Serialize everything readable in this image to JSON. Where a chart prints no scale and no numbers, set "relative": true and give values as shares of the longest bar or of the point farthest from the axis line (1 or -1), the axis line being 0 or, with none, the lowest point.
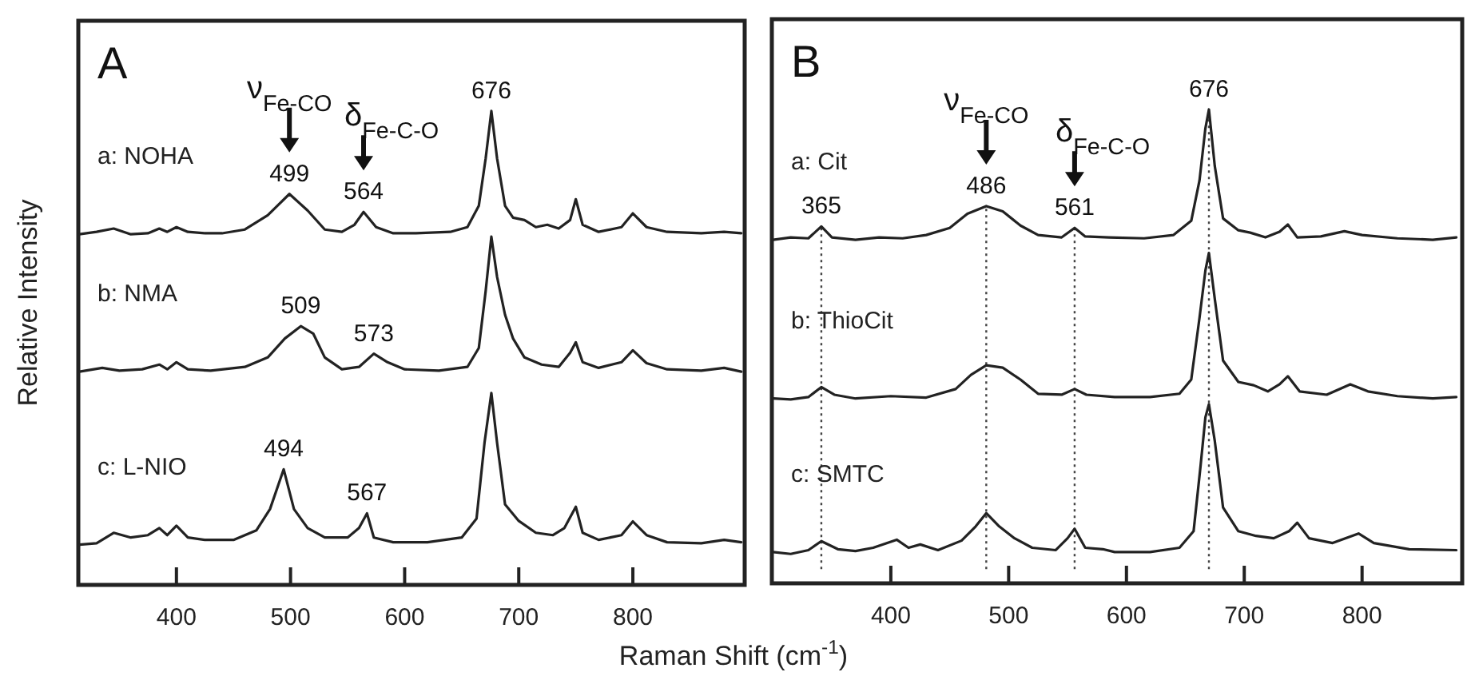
{
  "chart_data": [
    {
      "type": "line",
      "title": "A",
      "xlabel": "Raman Shift (cm$^{-1}$)",
      "ylabel": "Relative Intensity",
      "relative": true,
      "xlim": [
        314,
        898
      ],
      "xticks": [
        400,
        500,
        600,
        700,
        800
      ],
      "legend": false,
      "tick_labels": "x",
      "line_style": "solid",
      "series": [
        {
          "name": "a: NOHA",
          "color": "#222222",
          "x": [
            315,
            330,
            345,
            360,
            375,
            385,
            392,
            400,
            410,
            425,
            440,
            460,
            480,
            499,
            515,
            530,
            545,
            556,
            564,
            575,
            590,
            610,
            640,
            655,
            665,
            671,
            676,
            681,
            688,
            695,
            705,
            715,
            725,
            735,
            745,
            750,
            756,
            770,
            790,
            800,
            812,
            830,
            860,
            880,
            895
          ],
          "values": [
            0.74,
            0.745,
            0.752,
            0.74,
            0.742,
            0.752,
            0.745,
            0.755,
            0.745,
            0.742,
            0.742,
            0.75,
            0.78,
            0.825,
            0.79,
            0.75,
            0.745,
            0.76,
            0.787,
            0.755,
            0.742,
            0.742,
            0.745,
            0.755,
            0.8,
            0.9,
            1.0,
            0.9,
            0.8,
            0.775,
            0.77,
            0.755,
            0.76,
            0.752,
            0.77,
            0.814,
            0.76,
            0.745,
            0.755,
            0.784,
            0.755,
            0.745,
            0.742,
            0.745,
            0.742
          ]
        },
        {
          "name": "b: NMA",
          "color": "#222222",
          "x": [
            315,
            335,
            350,
            370,
            385,
            392,
            400,
            410,
            430,
            460,
            480,
            495,
            509,
            520,
            530,
            545,
            560,
            573,
            585,
            600,
            630,
            655,
            665,
            671,
            676,
            681,
            688,
            695,
            705,
            720,
            735,
            745,
            750,
            756,
            770,
            790,
            800,
            812,
            830,
            860,
            880,
            895
          ],
          "values": [
            0.45,
            0.458,
            0.452,
            0.455,
            0.465,
            0.455,
            0.47,
            0.455,
            0.452,
            0.46,
            0.48,
            0.52,
            0.546,
            0.53,
            0.48,
            0.455,
            0.46,
            0.488,
            0.47,
            0.455,
            0.452,
            0.46,
            0.5,
            0.62,
            0.735,
            0.65,
            0.57,
            0.52,
            0.48,
            0.465,
            0.46,
            0.49,
            0.512,
            0.47,
            0.458,
            0.47,
            0.495,
            0.468,
            0.455,
            0.452,
            0.458,
            0.45
          ]
        },
        {
          "name": "c: L-NIO",
          "color": "#222222",
          "x": [
            315,
            330,
            345,
            360,
            375,
            385,
            392,
            400,
            410,
            425,
            450,
            470,
            482,
            494,
            503,
            515,
            530,
            550,
            560,
            567,
            573,
            590,
            620,
            650,
            663,
            670,
            676,
            681,
            688,
            700,
            715,
            730,
            740,
            750,
            756,
            770,
            790,
            800,
            812,
            830,
            860,
            880,
            895
          ],
          "values": [
            0.085,
            0.088,
            0.11,
            0.1,
            0.105,
            0.12,
            0.105,
            0.125,
            0.1,
            0.095,
            0.095,
            0.115,
            0.16,
            0.244,
            0.16,
            0.12,
            0.1,
            0.1,
            0.12,
            0.151,
            0.1,
            0.09,
            0.09,
            0.1,
            0.14,
            0.3,
            0.405,
            0.3,
            0.17,
            0.135,
            0.11,
            0.105,
            0.12,
            0.165,
            0.11,
            0.095,
            0.105,
            0.134,
            0.105,
            0.09,
            0.088,
            0.095,
            0.09
          ]
        }
      ],
      "annotations": [
        {
          "text": "ν$_{Fe-CO}$",
          "x": 499,
          "y": 0.825
        },
        {
          "text": "δ$_{Fe-C-O}$",
          "x": 564,
          "y": 0.787
        },
        {
          "text": "499",
          "x": 499,
          "y": 0.825
        },
        {
          "text": "564",
          "x": 564,
          "y": 0.787
        },
        {
          "text": "676",
          "x": 676,
          "y": 1.0
        },
        {
          "text": "509",
          "x": 509,
          "y": 0.546
        },
        {
          "text": "573",
          "x": 573,
          "y": 0.488
        },
        {
          "text": "494",
          "x": 494,
          "y": 0.244
        },
        {
          "text": "567",
          "x": 567,
          "y": 0.151
        }
      ]
    },
    {
      "type": "line",
      "title": "B",
      "relative": true,
      "xlim": [
        299,
        885
      ],
      "xticks": [
        400,
        500,
        600,
        700,
        800
      ],
      "legend": false,
      "tick_labels": "x",
      "line_style": "solid",
      "series": [
        {
          "name": "a: Cit",
          "color": "#222222",
          "x": [
            300,
            315,
            330,
            341,
            350,
            370,
            390,
            410,
            430,
            450,
            465,
            481,
            495,
            510,
            525,
            545,
            556,
            565,
            585,
            615,
            640,
            655,
            662,
            667,
            670,
            675,
            682,
            695,
            705,
            718,
            730,
            737,
            745,
            765,
            785,
            800,
            830,
            860,
            880
          ],
          "values": [
            0.725,
            0.73,
            0.728,
            0.753,
            0.73,
            0.725,
            0.73,
            0.728,
            0.735,
            0.75,
            0.78,
            0.796,
            0.785,
            0.755,
            0.735,
            0.73,
            0.75,
            0.732,
            0.73,
            0.728,
            0.735,
            0.765,
            0.85,
            0.96,
            1.0,
            0.88,
            0.77,
            0.745,
            0.74,
            0.73,
            0.742,
            0.757,
            0.73,
            0.732,
            0.743,
            0.735,
            0.728,
            0.725,
            0.73
          ]
        },
        {
          "name": "b: ThioCit",
          "color": "#222222",
          "x": [
            300,
            315,
            330,
            341,
            352,
            370,
            400,
            430,
            455,
            468,
            481,
            495,
            510,
            525,
            545,
            556,
            566,
            590,
            620,
            645,
            655,
            662,
            667,
            670,
            675,
            682,
            695,
            708,
            720,
            730,
            737,
            747,
            770,
            790,
            805,
            830,
            860,
            880
          ],
          "values": [
            0.39,
            0.388,
            0.393,
            0.414,
            0.398,
            0.39,
            0.395,
            0.392,
            0.41,
            0.44,
            0.46,
            0.455,
            0.43,
            0.4,
            0.398,
            0.41,
            0.398,
            0.393,
            0.393,
            0.4,
            0.43,
            0.56,
            0.66,
            0.697,
            0.6,
            0.47,
            0.425,
            0.418,
            0.405,
            0.42,
            0.437,
            0.405,
            0.398,
            0.42,
            0.405,
            0.395,
            0.39,
            0.393
          ]
        },
        {
          "name": "c: SMTC",
          "color": "#222222",
          "x": [
            300,
            315,
            330,
            341,
            355,
            370,
            385,
            405,
            415,
            425,
            440,
            460,
            472,
            481,
            492,
            505,
            520,
            540,
            550,
            556,
            565,
            580,
            590,
            620,
            645,
            657,
            663,
            667,
            670,
            675,
            682,
            695,
            710,
            725,
            738,
            745,
            755,
            775,
            797,
            810,
            840,
            880
          ],
          "values": [
            0.066,
            0.062,
            0.07,
            0.089,
            0.072,
            0.068,
            0.075,
            0.092,
            0.075,
            0.082,
            0.07,
            0.09,
            0.12,
            0.148,
            0.12,
            0.095,
            0.075,
            0.07,
            0.095,
            0.115,
            0.075,
            0.072,
            0.066,
            0.066,
            0.075,
            0.11,
            0.25,
            0.35,
            0.378,
            0.3,
            0.16,
            0.11,
            0.1,
            0.095,
            0.11,
            0.128,
            0.095,
            0.085,
            0.105,
            0.085,
            0.072,
            0.07
          ]
        }
      ],
      "ref_lines": [
        {
          "axis": "x",
          "value": 341,
          "line_style": "dotted"
        },
        {
          "axis": "x",
          "value": 481,
          "line_style": "dotted"
        },
        {
          "axis": "x",
          "value": 556,
          "line_style": "dotted"
        },
        {
          "axis": "x",
          "value": 670,
          "line_style": "dotted"
        }
      ],
      "annotations": [
        {
          "text": "ν$_{Fe-CO}$",
          "x": 481,
          "y": 0.796
        },
        {
          "text": "δ$_{Fe-C-O}$",
          "x": 556,
          "y": 0.75
        },
        {
          "text": "365",
          "x": 341,
          "y": 0.753
        },
        {
          "text": "486",
          "x": 481,
          "y": 0.796
        },
        {
          "text": "561",
          "x": 556,
          "y": 0.75
        },
        {
          "text": "676",
          "x": 670,
          "y": 1.0
        }
      ]
    }
  ]
}
